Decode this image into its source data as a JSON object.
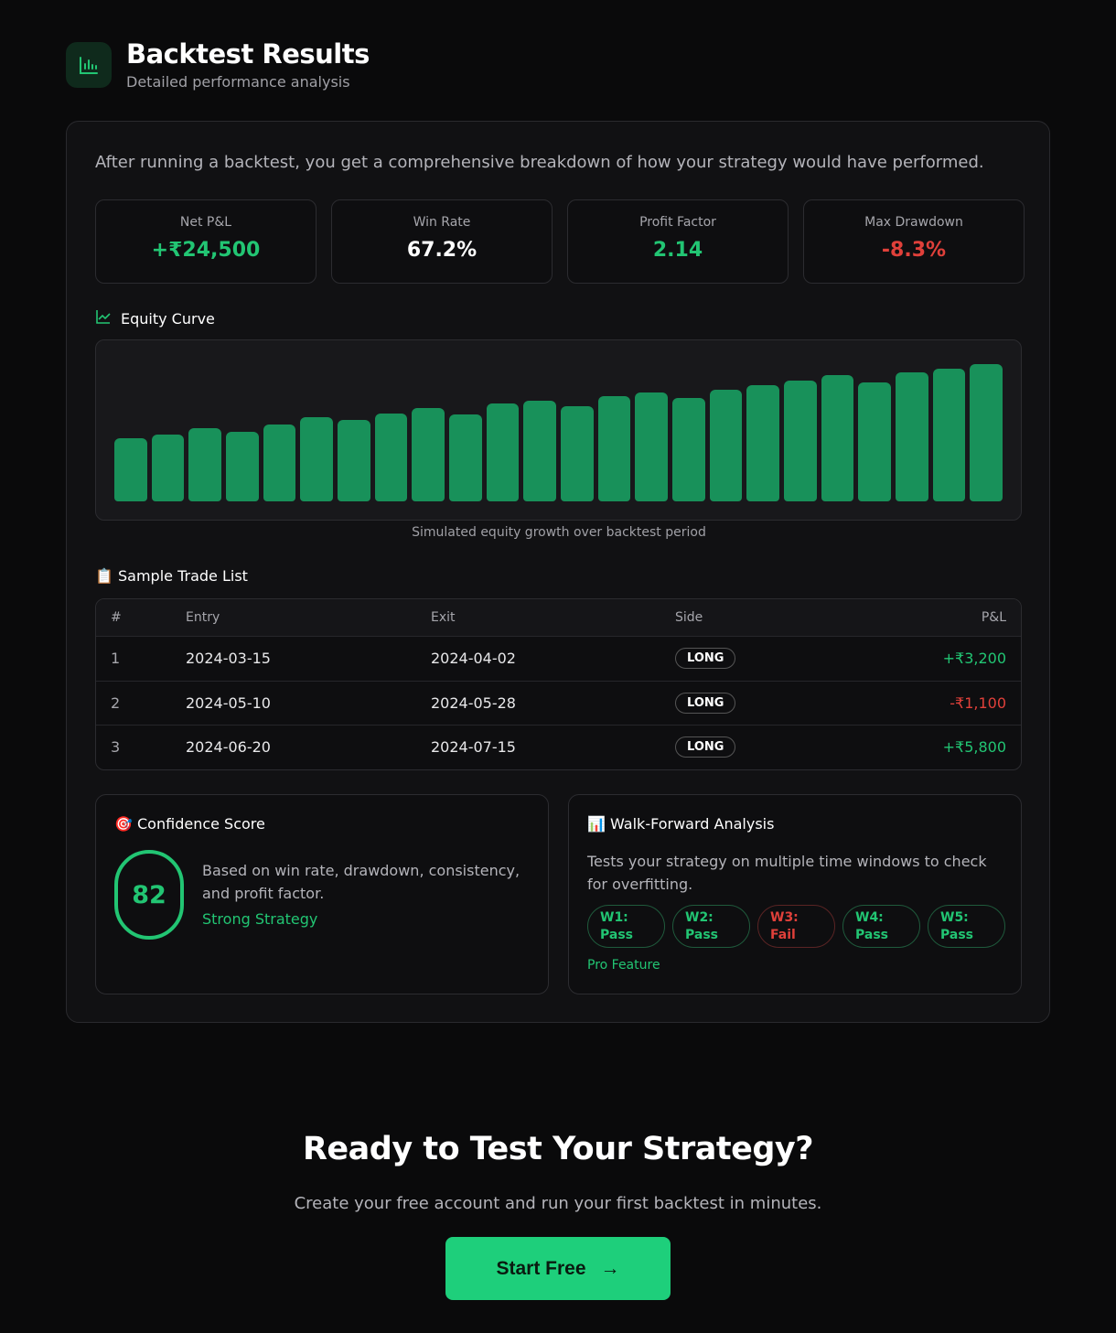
{
  "header": {
    "title": "Backtest Results",
    "subtitle": "Detailed performance analysis",
    "icon": "bar-chart-icon"
  },
  "intro": "After running a backtest, you get a comprehensive breakdown of how your strategy would have performed.",
  "stats": [
    {
      "label": "Net P&L",
      "value": "+₹24,500",
      "color": "#22c573"
    },
    {
      "label": "Win Rate",
      "value": "67.2%",
      "color": "#ffffff"
    },
    {
      "label": "Profit Factor",
      "value": "2.14",
      "color": "#22c573"
    },
    {
      "label": "Max Drawdown",
      "value": "-8.3%",
      "color": "#e0403a"
    }
  ],
  "equity": {
    "title": "Equity Curve",
    "caption": "Simulated equity growth over backtest period",
    "icon": "line-chart-icon"
  },
  "chart_data": {
    "type": "bar",
    "values": [
      45,
      48,
      52,
      50,
      55,
      60,
      58,
      63,
      67,
      62,
      70,
      72,
      68,
      75,
      78,
      74,
      80,
      83,
      86,
      90,
      85,
      92,
      95,
      98
    ],
    "ylim": [
      0,
      100
    ],
    "grid": false,
    "color": "#18915a"
  },
  "trades": {
    "title": "📋 Sample Trade List",
    "headers": [
      "#",
      "Entry",
      "Exit",
      "Side",
      "P&L"
    ],
    "rows": [
      {
        "n": "1",
        "entry": "2024-03-15",
        "exit": "2024-04-02",
        "side": "LONG",
        "pnl": "+₹3,200",
        "color": "#22c573"
      },
      {
        "n": "2",
        "entry": "2024-05-10",
        "exit": "2024-05-28",
        "side": "LONG",
        "pnl": "-₹1,100",
        "color": "#e0403a"
      },
      {
        "n": "3",
        "entry": "2024-06-20",
        "exit": "2024-07-15",
        "side": "LONG",
        "pnl": "+₹5,800",
        "color": "#22c573"
      }
    ]
  },
  "confidence": {
    "title": "🎯 Confidence Score",
    "score": "82",
    "desc": "Based on win rate, drawdown, consistency, and profit factor.",
    "verdict": "Strong Strategy"
  },
  "walk": {
    "title": "📊 Walk-Forward Analysis",
    "desc": "Tests your strategy on multiple time windows to check for overfitting.",
    "windows": [
      {
        "w": "W1:",
        "r": "Pass"
      },
      {
        "w": "W2:",
        "r": "Pass"
      },
      {
        "w": "W3:",
        "r": "Fail"
      },
      {
        "w": "W4:",
        "r": "Pass"
      },
      {
        "w": "W5:",
        "r": "Pass"
      }
    ],
    "note": "Pro Feature"
  },
  "cta": {
    "title": "Ready to Test Your Strategy?",
    "subtitle": "Create your free account and run your first backtest in minutes.",
    "button": "Start Free",
    "arrow": "→"
  }
}
